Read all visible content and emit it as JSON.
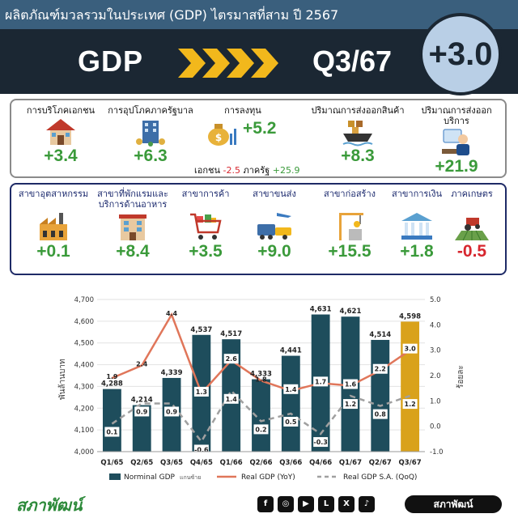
{
  "header": {
    "title": "ผลิตภัณฑ์มวลรวมในประเทศ (GDP) ไตรมาสที่สาม ปี 2567",
    "gdp_word": "GDP",
    "quarter": "Q3/67",
    "headline": "+3.0"
  },
  "demand": [
    {
      "label": "การบริโภคเอกชน",
      "value": "+3.4",
      "icon": "house-icon"
    },
    {
      "label": "การอุปโภคภาครัฐบาล",
      "value": "+6.3",
      "icon": "government-building-icon"
    },
    {
      "label": "การลงทุน",
      "value": "+5.2",
      "icon": "money-bag-icon"
    },
    {
      "label": "ปริมาณการส่งออกสินค้า",
      "value": "+8.3",
      "icon": "cargo-ship-icon"
    },
    {
      "label": "ปริมาณการส่งออกบริการ",
      "value": "+21.9",
      "icon": "service-icon"
    }
  ],
  "investment_detail": {
    "private_label": "เอกชน",
    "private_value": "-2.5",
    "public_label": "ภาครัฐ",
    "public_value": "+25.9"
  },
  "sectors": [
    {
      "label": "สาขาอุตสาหกรรม",
      "value": "+0.1",
      "icon": "factory-icon"
    },
    {
      "label": "สาขาที่พักแรมและ",
      "label2": "บริการด้านอาหาร",
      "value": "+8.4",
      "icon": "hotel-icon"
    },
    {
      "label": "สาขาการค้า",
      "value": "+3.5",
      "icon": "shopping-cart-icon"
    },
    {
      "label": "สาขาขนส่ง",
      "value": "+9.0",
      "icon": "transport-icon"
    },
    {
      "label": "สาขาก่อสร้าง",
      "value": "+15.5",
      "icon": "construction-icon"
    },
    {
      "label": "สาขาการเงิน",
      "value": "+1.8",
      "icon": "bank-icon"
    },
    {
      "label": "ภาคเกษตร",
      "value": "-0.5",
      "icon": "tractor-icon"
    }
  ],
  "chart_data": {
    "type": "bar",
    "categories": [
      "Q1/65",
      "Q2/65",
      "Q3/65",
      "Q4/65",
      "Q1/66",
      "Q2/66",
      "Q3/66",
      "Q4/66",
      "Q1/67",
      "Q2/67",
      "Q3/67"
    ],
    "series": [
      {
        "name": "Norminal GDP",
        "name_note": "แกนซ้าย",
        "type": "bar",
        "axis": "left",
        "values": [
          4288,
          4214,
          4339,
          4537,
          4517,
          4333,
          4441,
          4631,
          4621,
          4514,
          4598
        ],
        "inner_labels": [
          "0.1",
          "0.9",
          "0.9",
          "-0.6",
          "1.4",
          "0.2",
          "0.5",
          "-0.3",
          "1.2",
          "0.8",
          "1.2"
        ],
        "mid_labels": [
          "1.9",
          "2.4",
          "4.4",
          "1.3",
          "2.6",
          "1.8",
          "1.4",
          "1.7",
          "1.6",
          "2.2",
          "3.0"
        ]
      },
      {
        "name": "Real GDP (YoY)",
        "type": "line",
        "axis": "right",
        "values": [
          1.9,
          2.4,
          4.4,
          1.3,
          2.6,
          1.8,
          1.4,
          1.7,
          1.6,
          2.2,
          3.0
        ]
      },
      {
        "name": "Real GDP S.A. (QoQ)",
        "type": "dashed-line",
        "axis": "right",
        "values": [
          0.1,
          0.9,
          0.9,
          -0.6,
          1.4,
          0.2,
          0.5,
          -0.3,
          1.2,
          0.8,
          1.2
        ]
      }
    ],
    "ylabel_left": "พันล้านบาท",
    "ylabel_right": "ร้อยละ",
    "ylim_left": [
      4000,
      4700
    ],
    "ylim_right": [
      -1.0,
      5.0
    ],
    "yticks_left": [
      "4,000",
      "4,100",
      "4,200",
      "4,300",
      "4,400",
      "4,500",
      "4,600",
      "4,700"
    ],
    "yticks_right": [
      "-1.0",
      "0.0",
      "1.0",
      "2.0",
      "3.0",
      "4.0",
      "5.0"
    ],
    "highlight_index": 10,
    "legend_position": "bottom",
    "colors": {
      "bar": "#1e4d5c",
      "highlight": "#d9a21b",
      "line": "#e0765a",
      "dashed": "#a0a0a0"
    }
  },
  "footer": {
    "logo": "สภาพัฒน์",
    "handle": "สภาพัฒน์",
    "social_icons": [
      "facebook-icon",
      "instagram-icon",
      "youtube-icon",
      "line-icon",
      "x-icon",
      "tiktok-icon"
    ]
  }
}
